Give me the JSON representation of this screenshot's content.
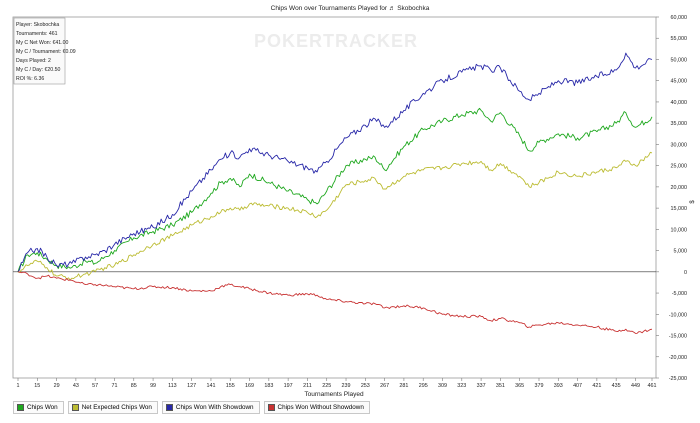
{
  "chart_data": {
    "type": "line",
    "title": "Chips Won over Tournaments Played for ♬ Skobochka",
    "xlabel": "Tournaments Played",
    "ylabel": "$",
    "xlim": [
      1,
      461
    ],
    "ylim": [
      -25000,
      60000
    ],
    "x_ticks": [
      1,
      15,
      29,
      43,
      57,
      71,
      85,
      99,
      113,
      127,
      141,
      155,
      169,
      183,
      197,
      211,
      225,
      239,
      253,
      267,
      281,
      295,
      309,
      323,
      337,
      351,
      365,
      379,
      393,
      407,
      421,
      435,
      449,
      461
    ],
    "y_ticks": [
      -25000,
      -20000,
      -15000,
      -10000,
      -5000,
      0,
      5000,
      10000,
      15000,
      20000,
      25000,
      30000,
      35000,
      40000,
      45000,
      50000,
      55000,
      60000
    ],
    "y_tick_labels": [
      "-25,000",
      "-20,000",
      "-15,000",
      "-10,000",
      "-5,000",
      "0",
      "5,000",
      "10,000",
      "15,000",
      "20,000",
      "25,000",
      "30,000",
      "35,000",
      "40,000",
      "45,000",
      "50,000",
      "55,000",
      "60,000"
    ],
    "grid": false,
    "legend_position": "bottom-left",
    "series": [
      {
        "name": "Chips Won",
        "color": "#1fa81f",
        "x": [
          1,
          8,
          15,
          22,
          29,
          40,
          50,
          57,
          64,
          71,
          85,
          99,
          113,
          127,
          141,
          148,
          155,
          162,
          169,
          183,
          197,
          211,
          218,
          225,
          239,
          253,
          260,
          267,
          281,
          295,
          309,
          323,
          337,
          344,
          351,
          365,
          372,
          379,
          393,
          407,
          421,
          435,
          442,
          449,
          461
        ],
        "y": [
          0,
          4000,
          4500,
          3000,
          1500,
          1000,
          2500,
          2000,
          3500,
          5000,
          8000,
          9500,
          11000,
          14000,
          18500,
          21000,
          22000,
          20000,
          23000,
          21000,
          19000,
          17000,
          16000,
          19000,
          25000,
          26500,
          27000,
          24000,
          29500,
          33500,
          35500,
          37000,
          38000,
          35500,
          37500,
          32000,
          28500,
          30500,
          32500,
          31500,
          33000,
          35000,
          37500,
          34000,
          36500
        ]
      },
      {
        "name": "Net Expected Chips Won",
        "color": "#bcbc33",
        "x": [
          1,
          8,
          15,
          22,
          29,
          40,
          50,
          57,
          64,
          71,
          85,
          99,
          113,
          127,
          141,
          148,
          155,
          162,
          169,
          183,
          197,
          211,
          218,
          225,
          239,
          253,
          260,
          267,
          281,
          295,
          309,
          323,
          337,
          344,
          351,
          365,
          372,
          379,
          393,
          407,
          421,
          435,
          442,
          449,
          461
        ],
        "y": [
          0,
          1500,
          2500,
          1000,
          -1000,
          -1500,
          -500,
          0,
          1000,
          1500,
          4000,
          6500,
          8500,
          11000,
          13000,
          14000,
          15000,
          14500,
          16000,
          15500,
          15000,
          14000,
          13000,
          14500,
          20500,
          21500,
          22000,
          19500,
          22500,
          24000,
          24500,
          25500,
          26000,
          24000,
          25500,
          22500,
          20000,
          21000,
          23500,
          22500,
          23500,
          24500,
          26000,
          25000,
          28000
        ]
      },
      {
        "name": "Chips Won With Showdown",
        "color": "#2828a8",
        "x": [
          1,
          8,
          15,
          22,
          29,
          40,
          50,
          57,
          64,
          71,
          85,
          99,
          113,
          127,
          141,
          148,
          155,
          162,
          169,
          183,
          197,
          211,
          218,
          225,
          239,
          253,
          260,
          267,
          281,
          295,
          309,
          323,
          337,
          344,
          351,
          365,
          372,
          379,
          393,
          407,
          421,
          435,
          442,
          449,
          461
        ],
        "y": [
          0,
          4500,
          5500,
          3500,
          1500,
          2000,
          3500,
          4000,
          5000,
          6500,
          9000,
          10500,
          13500,
          19000,
          24000,
          26500,
          28000,
          27000,
          29000,
          27500,
          26000,
          24500,
          23500,
          26000,
          31500,
          34500,
          36000,
          34000,
          38000,
          42000,
          45000,
          47000,
          48500,
          47500,
          48000,
          42500,
          40500,
          42000,
          45000,
          44500,
          46000,
          47500,
          51500,
          48000,
          50000
        ]
      },
      {
        "name": "Chips Won Without Showdown",
        "color": "#c83232",
        "x": [
          1,
          8,
          15,
          22,
          29,
          40,
          50,
          57,
          64,
          71,
          85,
          99,
          113,
          127,
          141,
          148,
          155,
          162,
          169,
          183,
          197,
          211,
          218,
          225,
          239,
          253,
          260,
          267,
          281,
          295,
          309,
          323,
          337,
          344,
          351,
          365,
          372,
          379,
          393,
          407,
          421,
          435,
          442,
          449,
          461
        ],
        "y": [
          0,
          -500,
          -1500,
          -1000,
          -1500,
          -2000,
          -3000,
          -3000,
          -3200,
          -3500,
          -4000,
          -3500,
          -3700,
          -4500,
          -4500,
          -3500,
          -3000,
          -3500,
          -4000,
          -5000,
          -5500,
          -5200,
          -5500,
          -6500,
          -7000,
          -7500,
          -7500,
          -8500,
          -8000,
          -8500,
          -10000,
          -10500,
          -10500,
          -11500,
          -11000,
          -12000,
          -13000,
          -12500,
          -12000,
          -12500,
          -13000,
          -14000,
          -13500,
          -14500,
          -13500
        ]
      }
    ]
  },
  "stats_box": {
    "lines": [
      "Player: Skobochka",
      "Tournaments: 461",
      "My C Net Won: €41.00",
      "My C / Tournament: €0.09",
      "Days Played: 2",
      "My C / Day: €20.50",
      "ROI %: 6.36"
    ]
  },
  "watermark": "POKERTRACKER",
  "legend": [
    {
      "label": "Chips Won",
      "color": "#1fa81f"
    },
    {
      "label": "Net Expected Chips Won",
      "color": "#bcbc33"
    },
    {
      "label": "Chips Won With Showdown",
      "color": "#2828a8"
    },
    {
      "label": "Chips Won Without Showdown",
      "color": "#c83232"
    }
  ]
}
